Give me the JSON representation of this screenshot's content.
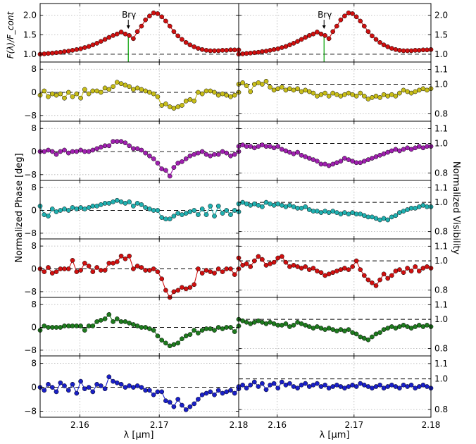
{
  "chart_data": {
    "type": "line",
    "xlabel": "λ [μm]",
    "ylabel_left": "Normalized Phase [deg]",
    "ylabel_right": "Normalized Visibility",
    "flux_ylabel": "F(λ)/F_cont",
    "line_annotation": "Brγ",
    "line_wavelength_um": 2.1661,
    "xlim": [
      2.155,
      2.18
    ],
    "xticks": [
      "2.16",
      "2.17",
      "2.18"
    ],
    "flux_ylim": [
      0.8,
      2.3
    ],
    "flux_yticks": [
      "1.0",
      "1.5",
      "2.0"
    ],
    "phase_ylim": [
      -10,
      10.5
    ],
    "phase_yticks": [
      "8",
      "0",
      "−8"
    ],
    "vis_ylim": [
      0.75,
      1.15
    ],
    "vis_yticks": [
      "1.1",
      "1.0",
      "0.8"
    ],
    "n_points": 50,
    "flux": {
      "color": "#d01010",
      "left": [
        1.0,
        1.01,
        1.02,
        1.03,
        1.04,
        1.05,
        1.07,
        1.08,
        1.1,
        1.12,
        1.14,
        1.17,
        1.2,
        1.24,
        1.28,
        1.33,
        1.38,
        1.43,
        1.48,
        1.52,
        1.57,
        1.52,
        1.48,
        1.4,
        1.58,
        1.72,
        1.88,
        1.98,
        2.06,
        2.04,
        1.96,
        1.85,
        1.72,
        1.58,
        1.47,
        1.38,
        1.3,
        1.24,
        1.19,
        1.15,
        1.12,
        1.1,
        1.09,
        1.09,
        1.09,
        1.1,
        1.1,
        1.11,
        1.11,
        1.11
      ],
      "right": [
        1.0,
        1.01,
        1.02,
        1.03,
        1.04,
        1.05,
        1.07,
        1.08,
        1.1,
        1.12,
        1.14,
        1.17,
        1.2,
        1.24,
        1.28,
        1.33,
        1.38,
        1.43,
        1.48,
        1.52,
        1.57,
        1.52,
        1.48,
        1.4,
        1.58,
        1.72,
        1.88,
        1.98,
        2.06,
        2.04,
        1.96,
        1.85,
        1.72,
        1.58,
        1.47,
        1.38,
        1.3,
        1.24,
        1.19,
        1.15,
        1.12,
        1.1,
        1.09,
        1.09,
        1.09,
        1.1,
        1.1,
        1.11,
        1.11,
        1.12
      ]
    },
    "baselines": [
      {
        "color": "#c7bd18",
        "phase": [
          -1.0,
          0.5,
          -1.5,
          -0.5,
          -1.0,
          -0.5,
          -2.0,
          0.0,
          -1.5,
          -0.5,
          -2.0,
          1.0,
          -0.5,
          0.5,
          0.5,
          0.0,
          1.5,
          1.0,
          2.0,
          3.5,
          3.0,
          2.5,
          2.0,
          1.0,
          1.5,
          1.0,
          0.5,
          0.0,
          -0.5,
          -1.5,
          -4.5,
          -4.0,
          -5.0,
          -5.5,
          -5.0,
          -4.5,
          -3.0,
          -2.5,
          -3.0,
          0.0,
          -0.5,
          0.5,
          0.5,
          0.0,
          -1.0,
          -0.5,
          -1.0,
          -1.5,
          -1.0,
          0.0
        ],
        "vis": [
          1.0,
          1.01,
          0.99,
          0.95,
          1.0,
          1.01,
          1.0,
          1.02,
          0.98,
          0.96,
          0.97,
          0.98,
          0.96,
          0.97,
          0.96,
          0.97,
          0.95,
          0.96,
          0.95,
          0.94,
          0.92,
          0.93,
          0.94,
          0.92,
          0.94,
          0.93,
          0.92,
          0.93,
          0.94,
          0.93,
          0.92,
          0.94,
          0.92,
          0.9,
          0.91,
          0.92,
          0.91,
          0.93,
          0.92,
          0.93,
          0.92,
          0.94,
          0.96,
          0.95,
          0.94,
          0.95,
          0.96,
          0.97,
          0.96,
          0.97
        ]
      },
      {
        "color": "#a020b0",
        "phase": [
          0.0,
          0.0,
          0.5,
          0.0,
          -1.0,
          0.0,
          0.5,
          -0.5,
          0.0,
          0.0,
          0.5,
          0.0,
          0.0,
          0.5,
          1.0,
          1.5,
          2.0,
          2.0,
          3.5,
          3.5,
          3.5,
          3.0,
          2.0,
          1.0,
          1.0,
          0.5,
          -0.5,
          -1.5,
          -2.5,
          -4.0,
          -6.0,
          -6.5,
          -8.5,
          -5.5,
          -4.0,
          -3.5,
          -2.5,
          -1.5,
          -1.0,
          -0.5,
          0.0,
          -1.0,
          -1.5,
          -1.0,
          -1.0,
          0.0,
          -0.5,
          -1.5,
          -1.0,
          0.0
        ],
        "vis": [
          0.98,
          0.99,
          0.98,
          0.98,
          0.97,
          0.98,
          0.99,
          0.98,
          0.98,
          0.97,
          0.98,
          0.96,
          0.95,
          0.94,
          0.93,
          0.94,
          0.92,
          0.91,
          0.9,
          0.89,
          0.88,
          0.86,
          0.86,
          0.85,
          0.86,
          0.87,
          0.88,
          0.9,
          0.89,
          0.88,
          0.87,
          0.87,
          0.88,
          0.89,
          0.9,
          0.91,
          0.92,
          0.93,
          0.94,
          0.95,
          0.96,
          0.95,
          0.96,
          0.97,
          0.96,
          0.97,
          0.98,
          0.97,
          0.98,
          0.98
        ]
      },
      {
        "color": "#20b0b0",
        "phase": [
          1.5,
          -1.5,
          -2.0,
          0.5,
          -0.5,
          0.0,
          0.5,
          0.0,
          1.0,
          0.5,
          1.0,
          0.5,
          1.0,
          1.5,
          1.5,
          2.0,
          2.5,
          2.5,
          3.0,
          3.5,
          3.0,
          2.5,
          3.0,
          1.5,
          2.5,
          2.0,
          1.0,
          0.5,
          0.0,
          0.0,
          -2.5,
          -3.0,
          -3.0,
          -2.0,
          -1.0,
          -1.5,
          -1.0,
          -0.5,
          0.0,
          -1.5,
          0.5,
          -1.5,
          1.5,
          -2.0,
          1.5,
          -1.0,
          0.0,
          -1.5,
          0.0,
          -0.5
        ],
        "vis": [
          0.99,
          1.0,
          0.99,
          0.98,
          0.99,
          0.98,
          0.97,
          1.0,
          0.99,
          0.98,
          0.99,
          0.98,
          0.97,
          0.98,
          0.97,
          0.96,
          0.96,
          0.97,
          0.95,
          0.94,
          0.94,
          0.93,
          0.94,
          0.93,
          0.94,
          0.93,
          0.92,
          0.93,
          0.92,
          0.93,
          0.92,
          0.92,
          0.91,
          0.9,
          0.9,
          0.89,
          0.88,
          0.89,
          0.88,
          0.9,
          0.91,
          0.93,
          0.94,
          0.95,
          0.96,
          0.96,
          0.97,
          0.98,
          0.97,
          0.97
        ]
      },
      {
        "color": "#d01010",
        "phase": [
          0.0,
          -1.0,
          0.5,
          -1.5,
          -1.0,
          0.0,
          0.0,
          0.0,
          3.0,
          -1.0,
          -0.5,
          2.0,
          1.0,
          -1.0,
          0.5,
          -0.5,
          -0.5,
          2.0,
          2.0,
          2.5,
          4.5,
          3.5,
          4.5,
          0.0,
          1.0,
          0.5,
          -0.5,
          -0.5,
          0.0,
          -1.0,
          -3.5,
          -7.5,
          -10.0,
          -8.0,
          -7.5,
          -6.5,
          -7.0,
          -6.5,
          -5.5,
          0.0,
          -1.5,
          -0.5,
          -1.0,
          -1.5,
          0.0,
          -1.0,
          0.0,
          0.0,
          -2.0,
          0.0
        ],
        "vis": [
          1.02,
          0.97,
          0.98,
          0.96,
          1.0,
          1.03,
          1.01,
          0.97,
          0.98,
          0.99,
          1.02,
          1.03,
          0.99,
          0.96,
          0.97,
          0.96,
          0.95,
          0.96,
          0.94,
          0.95,
          0.93,
          0.92,
          0.9,
          0.91,
          0.92,
          0.93,
          0.94,
          0.95,
          0.94,
          0.96,
          1.0,
          0.94,
          0.9,
          0.87,
          0.85,
          0.83,
          0.87,
          0.91,
          0.88,
          0.9,
          0.93,
          0.94,
          0.92,
          0.95,
          0.93,
          0.96,
          0.93,
          0.95,
          0.96,
          0.95
        ]
      },
      {
        "color": "#1e7a1e",
        "phase": [
          -1.0,
          0.5,
          0.0,
          0.0,
          0.0,
          0.0,
          0.5,
          0.5,
          0.5,
          0.5,
          0.5,
          -1.0,
          0.5,
          0.5,
          2.0,
          2.5,
          3.0,
          4.5,
          2.0,
          3.0,
          2.0,
          2.0,
          1.5,
          1.0,
          0.5,
          0.0,
          0.0,
          -0.5,
          -1.0,
          -3.0,
          -4.5,
          -5.5,
          -6.5,
          -6.0,
          -5.5,
          -4.0,
          -3.0,
          -2.5,
          -1.0,
          -2.0,
          -1.0,
          -0.5,
          -0.5,
          -1.0,
          0.0,
          -0.5,
          0.0,
          0.0,
          -1.5,
          0.5
        ],
        "vis": [
          1.0,
          0.99,
          0.98,
          0.97,
          0.98,
          0.99,
          0.98,
          0.97,
          0.98,
          0.97,
          0.96,
          0.96,
          0.97,
          0.95,
          0.96,
          0.98,
          0.97,
          0.96,
          0.95,
          0.94,
          0.95,
          0.94,
          0.93,
          0.94,
          0.93,
          0.92,
          0.93,
          0.92,
          0.93,
          0.91,
          0.9,
          0.88,
          0.87,
          0.86,
          0.88,
          0.9,
          0.91,
          0.93,
          0.94,
          0.95,
          0.94,
          0.95,
          0.96,
          0.95,
          0.94,
          0.95,
          0.96,
          0.95,
          0.96,
          0.95
        ]
      },
      {
        "color": "#1a20c8",
        "phase": [
          0.0,
          -1.0,
          1.0,
          0.0,
          -1.5,
          1.5,
          0.5,
          -1.0,
          1.0,
          -2.0,
          2.0,
          -0.5,
          0.0,
          -1.5,
          1.0,
          0.5,
          -0.5,
          3.5,
          2.0,
          1.5,
          1.0,
          0.0,
          0.5,
          0.0,
          0.5,
          0.0,
          -1.0,
          -1.0,
          -2.5,
          -1.5,
          -1.5,
          -4.5,
          -5.0,
          -6.5,
          -4.0,
          -6.0,
          -7.5,
          -6.5,
          -5.5,
          -4.0,
          -2.5,
          -2.0,
          -1.5,
          -2.5,
          -1.0,
          -2.0,
          -1.5,
          -1.0,
          -2.0,
          -0.5
        ],
        "vis": [
          0.95,
          0.96,
          0.94,
          0.96,
          0.98,
          0.95,
          0.97,
          0.93,
          0.96,
          0.97,
          0.94,
          0.98,
          0.96,
          0.97,
          0.95,
          0.94,
          0.96,
          0.97,
          0.95,
          0.96,
          0.97,
          0.95,
          0.96,
          0.94,
          0.95,
          0.96,
          0.95,
          0.94,
          0.95,
          0.96,
          0.95,
          0.97,
          0.96,
          0.95,
          0.94,
          0.95,
          0.96,
          0.94,
          0.95,
          0.96,
          0.95,
          0.94,
          0.96,
          0.95,
          0.96,
          0.94,
          0.95,
          0.96,
          0.95,
          0.94
        ]
      }
    ]
  }
}
